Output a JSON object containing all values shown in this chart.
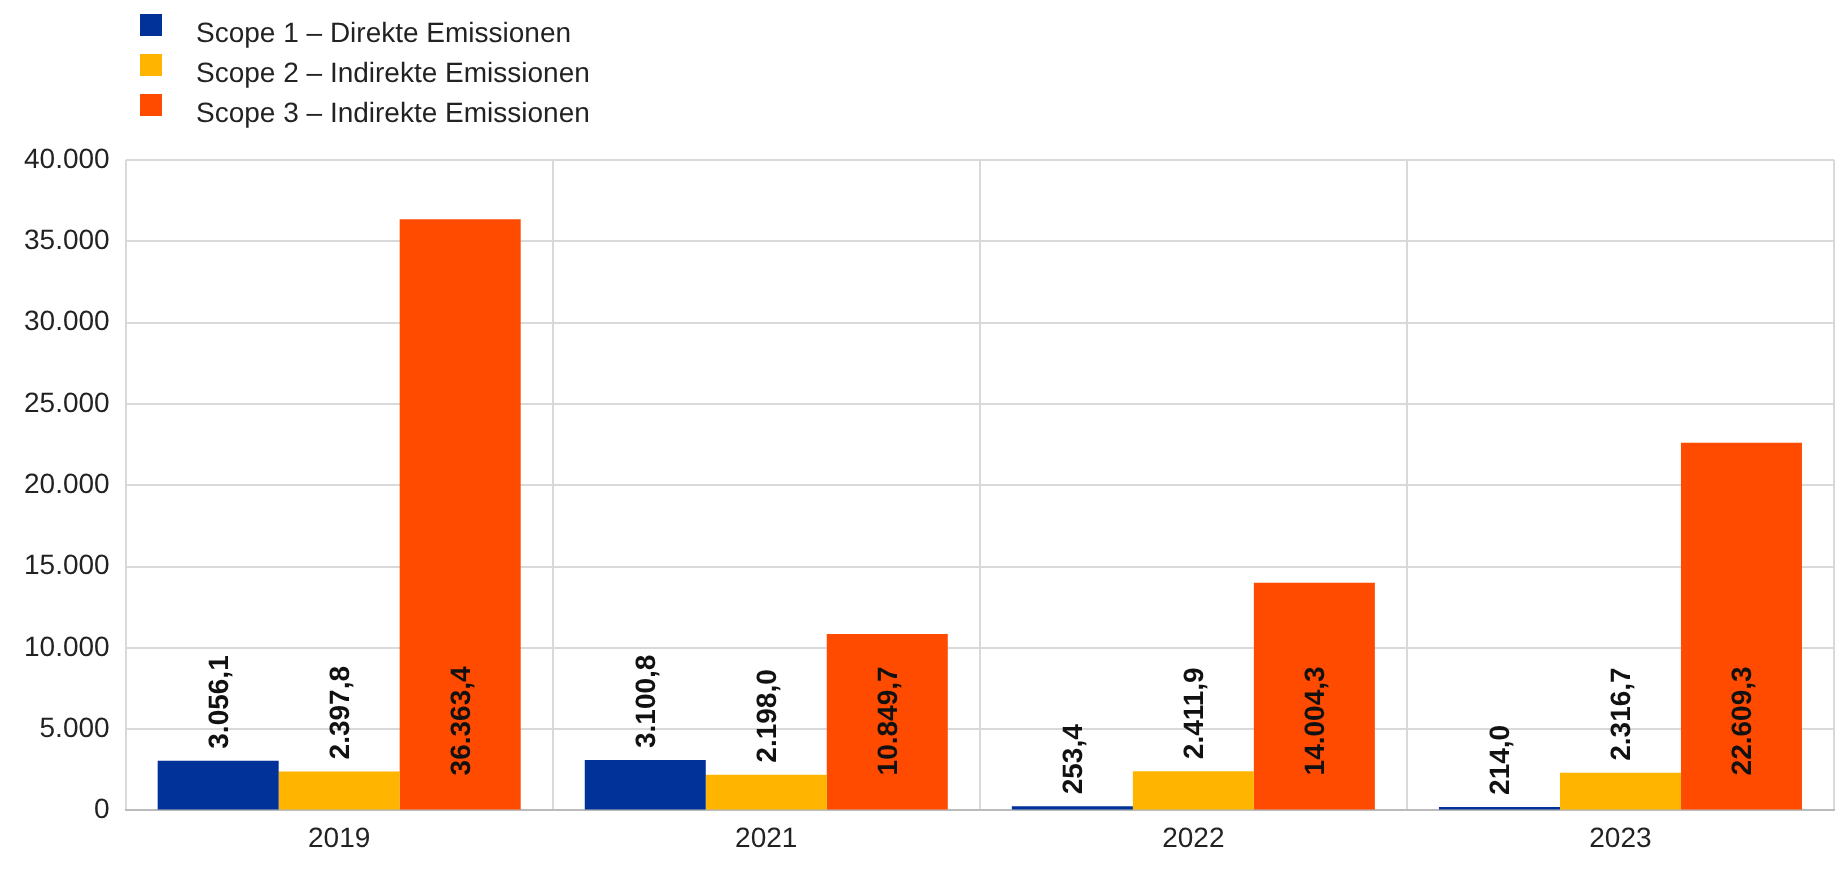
{
  "chart_data": {
    "type": "bar",
    "categories": [
      "2019",
      "2021",
      "2022",
      "2023"
    ],
    "series": [
      {
        "name": "Scope 1 – Direkte Emissionen",
        "color": "#003299",
        "values": [
          3056.1,
          3100.8,
          253.4,
          214.0
        ],
        "value_labels": [
          "3.056,1",
          "3.100,8",
          "253,4",
          "214,0"
        ]
      },
      {
        "name": "Scope 2 – Indirekte Emissionen",
        "color": "#ffb400",
        "values": [
          2397.8,
          2198.0,
          2411.9,
          2316.7
        ],
        "value_labels": [
          "2.397,8",
          "2.198,0",
          "2.411,9",
          "2.316,7"
        ]
      },
      {
        "name": "Scope 3 – Indirekte Emissionen",
        "color": "#ff4b00",
        "values": [
          36363.4,
          10849.7,
          14004.3,
          22609.3
        ],
        "value_labels": [
          "36.363,4",
          "10.849,7",
          "14.004,3",
          "22.609,3"
        ]
      }
    ],
    "ylim": [
      0,
      40000
    ],
    "yticks": [
      {
        "value": 0,
        "label": "0"
      },
      {
        "value": 5000,
        "label": "5.000"
      },
      {
        "value": 10000,
        "label": "10.000"
      },
      {
        "value": 15000,
        "label": "15.000"
      },
      {
        "value": 20000,
        "label": "20.000"
      },
      {
        "value": 25000,
        "label": "25.000"
      },
      {
        "value": 30000,
        "label": "30.000"
      },
      {
        "value": 35000,
        "label": "35.000"
      },
      {
        "value": 40000,
        "label": "40.000"
      }
    ],
    "grid": true,
    "legend": "top left"
  }
}
